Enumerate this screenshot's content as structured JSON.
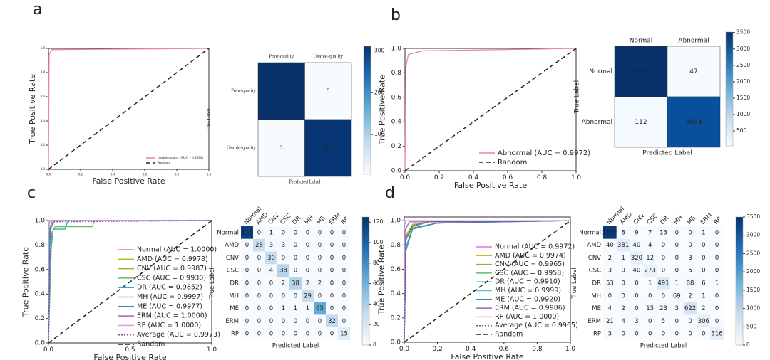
{
  "panel_labels": [
    "a",
    "b",
    "c",
    "d"
  ],
  "chart_data": [
    {
      "type": "line",
      "xlabel": "False Positive Rate",
      "ylabel": "True Positive Rate",
      "xlim": [
        0,
        1
      ],
      "ylim": [
        0,
        1
      ],
      "xticks": [
        {
          "value": 0,
          "label": "0.0"
        },
        0.2,
        0.4,
        0.6,
        0.8,
        {
          "value": 1,
          "label": "1.0"
        }
      ],
      "yticks": [
        {
          "value": 0,
          "label": "0.0"
        },
        0.2,
        0.4,
        0.6,
        0.8,
        {
          "value": 1,
          "label": "1.0"
        }
      ],
      "series": [
        {
          "name": "Usable-quality (AUC = 0.9996)",
          "color": "#e8889a",
          "linestyle": "solid",
          "x": [
            0,
            0.004,
            0.02,
            1
          ],
          "values": [
            0,
            0.95,
            0.99,
            1
          ]
        },
        {
          "name": "Random",
          "color": "#222222",
          "linestyle": "dashed",
          "x": [
            0,
            1
          ],
          "values": [
            0,
            1
          ]
        }
      ]
    },
    {
      "type": "heatmap",
      "xlabel": "Predicted Label",
      "ylabel": "True Label",
      "categories": [
        "Poor-quality",
        "Usable-quality"
      ],
      "rows": [
        "Poor-quality",
        "Usable-quality"
      ],
      "values": [
        [
          311,
          5
        ],
        [
          5,
          305
        ]
      ],
      "clim": [
        5,
        311
      ],
      "cticks": [
        100,
        200,
        300
      ]
    },
    {
      "type": "line",
      "xlabel": "False Positive Rate",
      "ylabel": "True Positive Rate",
      "xlim": [
        0,
        1
      ],
      "ylim": [
        0,
        1
      ],
      "xticks": [
        {
          "value": 0,
          "label": "0.0"
        },
        0.2,
        0.4,
        0.6,
        0.8,
        {
          "value": 1,
          "label": "1.0"
        }
      ],
      "yticks": [
        {
          "value": 0,
          "label": "0.0"
        },
        0.2,
        0.4,
        0.6,
        0.8,
        {
          "value": 1,
          "label": "1.0"
        }
      ],
      "series": [
        {
          "name": "Abnormal (AUC = 0.9972)",
          "color": "#e8889a",
          "linestyle": "solid",
          "x": [
            0,
            0.005,
            0.02,
            0.1,
            1
          ],
          "values": [
            0,
            0.85,
            0.95,
            0.98,
            1
          ]
        },
        {
          "name": "Random",
          "color": "#222222",
          "linestyle": "dashed",
          "x": [
            0,
            1
          ],
          "values": [
            0,
            1
          ]
        }
      ]
    },
    {
      "type": "heatmap",
      "xlabel": "Predicted Label",
      "ylabel": "True Label",
      "categories": [
        "Normal",
        "Abnormal"
      ],
      "rows": [
        "Normal",
        "Abnormal"
      ],
      "values": [
        [
          3515,
          47
        ],
        [
          112,
          3094
        ]
      ],
      "clim": [
        47,
        3515
      ],
      "cticks": [
        500,
        1000,
        1500,
        2000,
        2500,
        3000,
        3500
      ]
    },
    {
      "type": "line",
      "xlabel": "False Positive Rate",
      "ylabel": "True Positive Rate",
      "xlim": [
        0,
        1
      ],
      "ylim": [
        0,
        1
      ],
      "xticks": [
        {
          "value": 0,
          "label": "0.0"
        },
        0.5,
        {
          "value": 1,
          "label": "1.0"
        }
      ],
      "yticks": [
        {
          "value": 0,
          "label": "0.0"
        },
        0.2,
        0.4,
        0.6,
        0.8,
        {
          "value": 1,
          "label": "1.0"
        }
      ],
      "series": [
        {
          "name": "Normal (AUC = 1.0000)",
          "color": "#e377c2",
          "linestyle": "solid",
          "x": [
            0,
            0,
            1
          ],
          "values": [
            0,
            1,
            1
          ]
        },
        {
          "name": "AMD (AUC = 0.9978)",
          "color": "#bcbd22",
          "linestyle": "solid",
          "x": [
            0,
            0.01,
            0.03,
            1
          ],
          "values": [
            0,
            0.9,
            1,
            1
          ]
        },
        {
          "name": "CNV (AUC = 0.9987)",
          "color": "#a6a832",
          "linestyle": "solid",
          "x": [
            0,
            0.01,
            0.02,
            1
          ],
          "values": [
            0,
            0.93,
            1,
            1
          ]
        },
        {
          "name": "CSC (AUC = 0.9930)",
          "color": "#5fbf5f",
          "linestyle": "solid",
          "x": [
            0,
            0.02,
            0.04,
            0.27,
            0.28,
            1
          ],
          "values": [
            0,
            0.9,
            0.95,
            0.95,
            1,
            1
          ]
        },
        {
          "name": "DR (AUC = 0.9852)",
          "color": "#2ab0b0",
          "linestyle": "solid",
          "x": [
            0,
            0.01,
            0.03,
            0.1,
            0.12,
            1
          ],
          "values": [
            0,
            0.7,
            0.93,
            0.93,
            1,
            1
          ]
        },
        {
          "name": "MH (AUC = 0.9997)",
          "color": "#6fb7e0",
          "linestyle": "solid",
          "x": [
            0,
            0.005,
            0.01,
            1
          ],
          "values": [
            0,
            0.97,
            1,
            1
          ]
        },
        {
          "name": "ME (AUC = 0.9977)",
          "color": "#4a7fb5",
          "linestyle": "solid",
          "x": [
            0,
            0.01,
            0.04,
            1
          ],
          "values": [
            0,
            0.94,
            1,
            1
          ]
        },
        {
          "name": "ERM (AUC = 1.0000)",
          "color": "#9467bd",
          "linestyle": "solid",
          "x": [
            0,
            0,
            1
          ],
          "values": [
            0,
            1,
            1
          ]
        },
        {
          "name": "RP (AUC = 1.0000)",
          "color": "#e39ad8",
          "linestyle": "solid",
          "x": [
            0,
            0,
            1
          ],
          "values": [
            0,
            1,
            1
          ]
        },
        {
          "name": "Average (AUC = 0.9973)",
          "color": "#7b4fa0",
          "linestyle": "dotted",
          "x": [
            0,
            0.01,
            0.03,
            1
          ],
          "values": [
            0,
            0.95,
            0.99,
            1
          ]
        },
        {
          "name": "Random",
          "color": "#222222",
          "linestyle": "dashed",
          "x": [
            0,
            1
          ],
          "values": [
            0,
            1
          ]
        }
      ]
    },
    {
      "type": "heatmap",
      "xlabel": "Predicted Label",
      "ylabel": "True Label",
      "categories": [
        "Normal",
        "AMD",
        "CNV",
        "CSC",
        "DR",
        "MH",
        "ME",
        "ERM",
        "RP"
      ],
      "rows": [
        "Normal",
        "AMD",
        "CNV",
        "CSC",
        "DR",
        "MH",
        "ME",
        "ERM",
        "RP"
      ],
      "values": [
        [
          118,
          0,
          1,
          0,
          0,
          0,
          0,
          0,
          0
        ],
        [
          0,
          28,
          3,
          3,
          0,
          0,
          0,
          0,
          0
        ],
        [
          0,
          0,
          30,
          0,
          0,
          0,
          0,
          0,
          0
        ],
        [
          0,
          0,
          4,
          38,
          0,
          0,
          0,
          0,
          0
        ],
        [
          0,
          0,
          0,
          2,
          38,
          2,
          2,
          0,
          0
        ],
        [
          0,
          0,
          0,
          0,
          0,
          29,
          0,
          0,
          0
        ],
        [
          0,
          0,
          0,
          1,
          1,
          1,
          65,
          0,
          0
        ],
        [
          0,
          0,
          0,
          0,
          0,
          0,
          0,
          32,
          0
        ],
        [
          0,
          0,
          0,
          0,
          0,
          0,
          0,
          0,
          15
        ]
      ],
      "clim": [
        0,
        125
      ],
      "cticks": [
        0,
        20,
        40,
        60,
        80,
        100,
        120
      ]
    },
    {
      "type": "line",
      "xlabel": "False Positive Rate",
      "ylabel": "True Positive Rate",
      "xlim": [
        0,
        1
      ],
      "ylim": [
        0,
        1.03
      ],
      "xticks": [
        {
          "value": 0,
          "label": "0.0"
        },
        0.2,
        0.4,
        0.6,
        0.8,
        {
          "value": 1,
          "label": "1.0"
        }
      ],
      "yticks": [
        {
          "value": 0,
          "label": "0.0"
        },
        0.2,
        0.4,
        0.6,
        0.8,
        {
          "value": 1,
          "label": "1.0"
        }
      ],
      "series": [
        {
          "name": "Normal (AUC = 0.9972)",
          "color": "#e377c2",
          "linestyle": "solid",
          "x": [
            0,
            0.01,
            0.05,
            0.15,
            1
          ],
          "values": [
            0,
            0.85,
            0.96,
            0.99,
            1
          ]
        },
        {
          "name": "AMD (AUC = 0.9974)",
          "color": "#bcbd22",
          "linestyle": "solid",
          "x": [
            0,
            0.01,
            0.05,
            0.15,
            1
          ],
          "values": [
            0,
            0.88,
            0.97,
            0.99,
            1
          ]
        },
        {
          "name": "CNV (AUC = 0.9965)",
          "color": "#a6a832",
          "linestyle": "solid",
          "x": [
            0,
            0.01,
            0.05,
            0.15,
            1
          ],
          "values": [
            0,
            0.86,
            0.96,
            0.99,
            1
          ]
        },
        {
          "name": "CSC (AUC = 0.9958)",
          "color": "#5fbf5f",
          "linestyle": "solid",
          "x": [
            0,
            0.01,
            0.05,
            0.15,
            1
          ],
          "values": [
            0,
            0.84,
            0.95,
            0.99,
            1
          ]
        },
        {
          "name": "DR (AUC = 0.9910)",
          "color": "#2ab0b0",
          "linestyle": "solid",
          "x": [
            0,
            0.01,
            0.05,
            0.2,
            1
          ],
          "values": [
            0,
            0.75,
            0.93,
            0.98,
            1
          ]
        },
        {
          "name": "MH (AUC = 0.9999)",
          "color": "#6fb7e0",
          "linestyle": "solid",
          "x": [
            0,
            0.003,
            0.01,
            1
          ],
          "values": [
            0,
            0.97,
            1,
            1
          ]
        },
        {
          "name": "ME (AUC = 0.9920)",
          "color": "#4a7fb5",
          "linestyle": "solid",
          "x": [
            0,
            0.01,
            0.05,
            0.2,
            1
          ],
          "values": [
            0,
            0.78,
            0.94,
            0.98,
            1
          ]
        },
        {
          "name": "ERM (AUC = 0.9986)",
          "color": "#9467bd",
          "linestyle": "solid",
          "x": [
            0,
            0.005,
            0.03,
            1
          ],
          "values": [
            0,
            0.92,
            0.99,
            1
          ]
        },
        {
          "name": "RP (AUC = 1.0000)",
          "color": "#e39ad8",
          "linestyle": "solid",
          "x": [
            0,
            0,
            1
          ],
          "values": [
            0,
            1,
            1
          ]
        },
        {
          "name": "Average (AUC = 0.9965)",
          "color": "#7b4fa0",
          "linestyle": "dotted",
          "x": [
            0,
            0.01,
            0.05,
            0.15,
            1
          ],
          "values": [
            0,
            0.86,
            0.96,
            0.99,
            1
          ]
        },
        {
          "name": "Random",
          "color": "#222222",
          "linestyle": "dashed",
          "x": [
            0,
            1
          ],
          "values": [
            0,
            1
          ]
        }
      ]
    },
    {
      "type": "heatmap",
      "xlabel": "Predicted Label",
      "ylabel": "True Label",
      "categories": [
        "Normal",
        "AMD",
        "CNV",
        "CSC",
        "DR",
        "MH",
        "ME",
        "ERM",
        "RP"
      ],
      "rows": [
        "Normal",
        "AMD",
        "CNV",
        "CSC",
        "DR",
        "MH",
        "ME",
        "ERM",
        "RP"
      ],
      "values": [
        [
          3377,
          8,
          9,
          7,
          13,
          0,
          0,
          1,
          0
        ],
        [
          40,
          381,
          40,
          4,
          0,
          0,
          0,
          0,
          0
        ],
        [
          2,
          1,
          320,
          12,
          0,
          0,
          3,
          0,
          0
        ],
        [
          3,
          0,
          40,
          273,
          0,
          0,
          5,
          0,
          0
        ],
        [
          53,
          0,
          0,
          1,
          491,
          1,
          88,
          6,
          1
        ],
        [
          0,
          0,
          0,
          0,
          0,
          69,
          2,
          1,
          0
        ],
        [
          4,
          2,
          0,
          15,
          23,
          3,
          622,
          2,
          0
        ],
        [
          21,
          4,
          3,
          0,
          5,
          0,
          0,
          306,
          0
        ],
        [
          3,
          0,
          0,
          0,
          0,
          0,
          0,
          0,
          316
        ]
      ],
      "clim": [
        0,
        3500
      ],
      "cticks": [
        0,
        500,
        1000,
        1500,
        2000,
        2500,
        3000,
        3500
      ]
    }
  ]
}
